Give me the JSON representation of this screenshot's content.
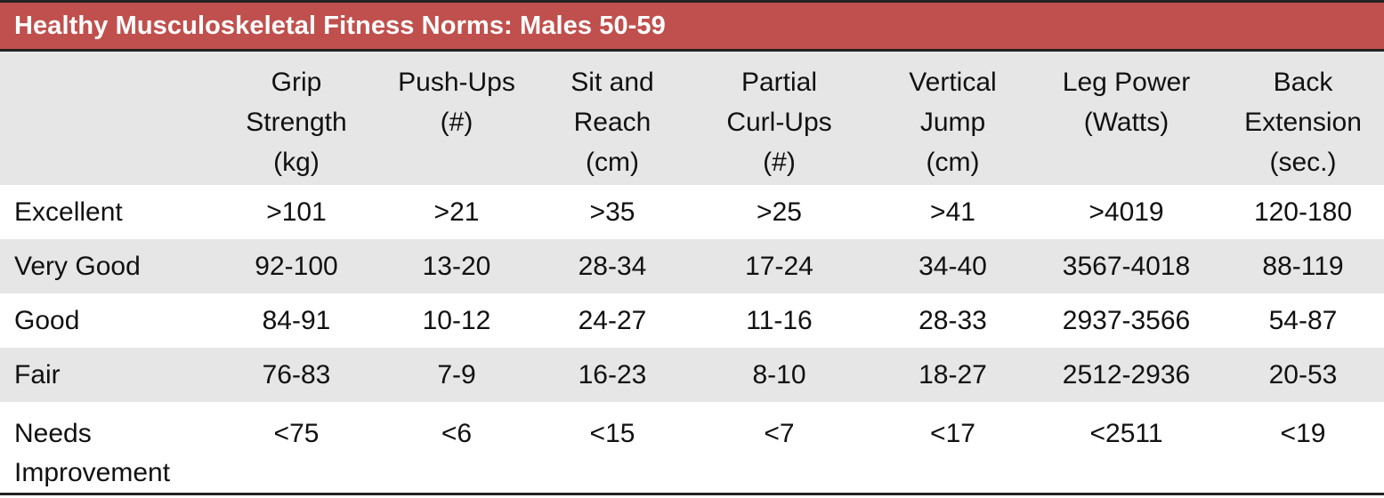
{
  "title": "Healthy Musculoskeletal Fitness Norms: Males 50-59",
  "columns": [
    "",
    "Grip\nStrength\n(kg)",
    "Push-Ups\n(#)",
    "Sit and\nReach\n(cm)",
    "Partial\nCurl-Ups\n(#)",
    "Vertical\nJump\n(cm)",
    "Leg Power\n(Watts)",
    "Back\nExtension\n(sec.)"
  ],
  "rows": [
    [
      "Excellent",
      ">101",
      ">21",
      ">35",
      ">25",
      ">41",
      ">4019",
      "120-180"
    ],
    [
      "Very Good",
      "92-100",
      "13-20",
      "28-34",
      "17-24",
      "34-40",
      "3567-4018",
      "88-119"
    ],
    [
      "Good",
      "84-91",
      "10-12",
      "24-27",
      "11-16",
      "28-33",
      "2937-3566",
      "54-87"
    ],
    [
      "Fair",
      "76-83",
      "7-9",
      "16-23",
      "8-10",
      "18-27",
      "2512-2936",
      "20-53"
    ],
    [
      "Needs\nImprovement",
      "<75",
      "<6",
      "<15",
      "<7",
      "<17",
      "<2511",
      "<19"
    ]
  ],
  "colors": {
    "title_bar": "#c0504d",
    "shaded_row": "#e6e6e6",
    "border": "#222222"
  }
}
